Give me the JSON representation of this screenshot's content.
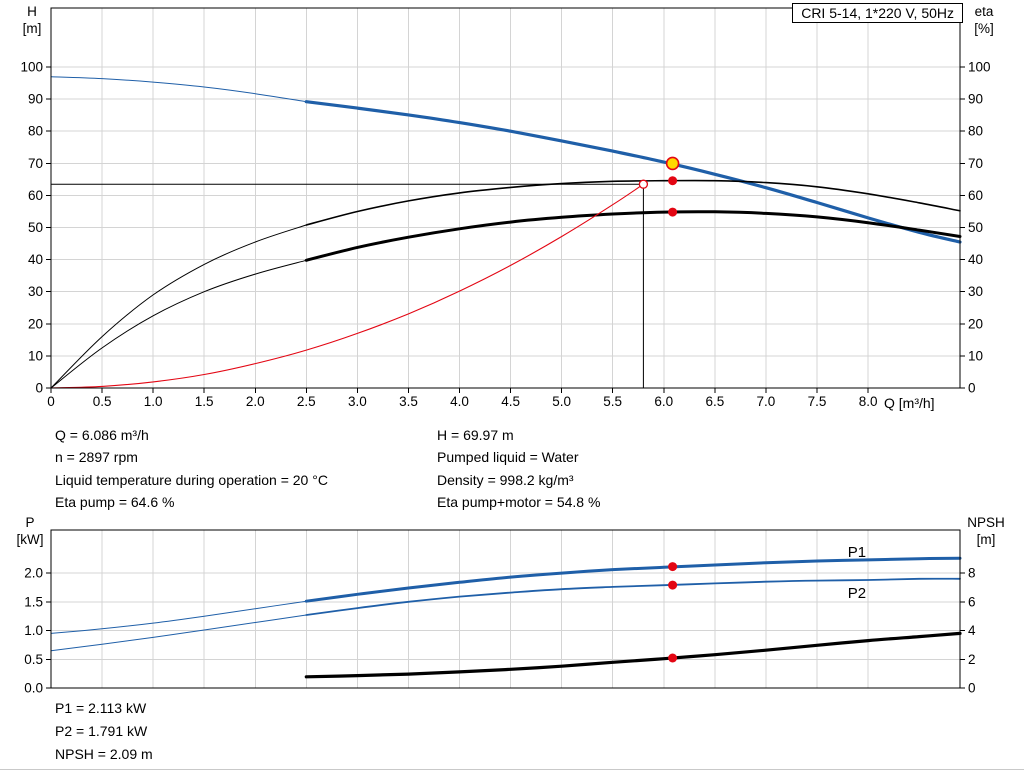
{
  "title_box": {
    "label": "CRI 5-14, 1*220 V, 50Hz"
  },
  "colors": {
    "blue": "#1f5fa8",
    "red": "#e30613",
    "black": "#000000",
    "yellow": "#ffd900",
    "grid": "#d4d4d4"
  },
  "annotations": {
    "left": [
      "Q = 6.086 m³/h",
      "n = 2897 rpm",
      "Liquid temperature during operation = 20 °C",
      "Eta pump = 64.6 %"
    ],
    "right": [
      "H = 69.97 m",
      "Pumped liquid = Water",
      "Density = 998.2 kg/m³",
      "Eta pump+motor = 54.8 %"
    ]
  },
  "bottom_annotations": [
    "P1 = 2.113 kW",
    "P2 = 1.791 kW",
    "NPSH = 2.09 m"
  ],
  "chart_data": [
    {
      "type": "line",
      "title": "CRI 5-14, 1*220 V, 50Hz",
      "x_axis": {
        "label": "Q [m³/h]",
        "min": 0,
        "max": 8.9,
        "ticks": [
          [
            0,
            "0"
          ],
          [
            0.5,
            "0.5"
          ],
          [
            1,
            "1.0"
          ],
          [
            1.5,
            "1.5"
          ],
          [
            2,
            "2.0"
          ],
          [
            2.5,
            "2.5"
          ],
          [
            3,
            "3.0"
          ],
          [
            3.5,
            "3.5"
          ],
          [
            4,
            "4.0"
          ],
          [
            4.5,
            "4.5"
          ],
          [
            5,
            "5.0"
          ],
          [
            5.5,
            "5.5"
          ],
          [
            6,
            "6.0"
          ],
          [
            6.5,
            "6.5"
          ],
          [
            7,
            "7.0"
          ],
          [
            7.5,
            "7.5"
          ],
          [
            8,
            "8.0"
          ]
        ]
      },
      "left_axis": {
        "label": "H [m]",
        "label_lines": [
          "H",
          "[m]"
        ],
        "min": 0,
        "max": 118.4,
        "ticks": [
          [
            0,
            "0"
          ],
          [
            10,
            "10"
          ],
          [
            20,
            "20"
          ],
          [
            30,
            "30"
          ],
          [
            40,
            "40"
          ],
          [
            50,
            "50"
          ],
          [
            60,
            "60"
          ],
          [
            70,
            "70"
          ],
          [
            80,
            "80"
          ],
          [
            90,
            "90"
          ],
          [
            100,
            "100"
          ]
        ]
      },
      "right_axis": {
        "label": "eta [%]",
        "label_lines": [
          "eta",
          "[%]"
        ],
        "min": 0,
        "max": 118.4,
        "ticks": [
          [
            0,
            "0"
          ],
          [
            10,
            "10"
          ],
          [
            20,
            "20"
          ],
          [
            30,
            "30"
          ],
          [
            40,
            "40"
          ],
          [
            50,
            "50"
          ],
          [
            60,
            "60"
          ],
          [
            70,
            "70"
          ],
          [
            80,
            "80"
          ],
          [
            90,
            "90"
          ],
          [
            100,
            "100"
          ]
        ]
      },
      "series": [
        {
          "name": "h-curve-lead",
          "color": "blue",
          "width": 1,
          "axis": "left",
          "points": [
            [
              0,
              97
            ],
            [
              0.5,
              96.4
            ],
            [
              1,
              95.3
            ],
            [
              1.5,
              93.8
            ],
            [
              2,
              91.7
            ],
            [
              2.5,
              89.2
            ]
          ]
        },
        {
          "name": "h-curve",
          "color": "blue",
          "width": 3.2,
          "axis": "left",
          "points": [
            [
              2.5,
              89.2
            ],
            [
              3,
              87.2
            ],
            [
              3.5,
              85.1
            ],
            [
              4,
              82.7
            ],
            [
              4.5,
              80
            ],
            [
              5,
              77
            ],
            [
              5.5,
              73.8
            ],
            [
              6,
              70.4
            ],
            [
              6.5,
              66.6
            ],
            [
              7,
              62.4
            ],
            [
              7.5,
              57.8
            ],
            [
              8,
              53
            ],
            [
              8.5,
              48.5
            ],
            [
              8.9,
              45.5
            ]
          ]
        },
        {
          "name": "eta-pump-lead",
          "color": "black",
          "width": 1,
          "axis": "right",
          "points": [
            [
              0,
              0
            ],
            [
              0.5,
              16
            ],
            [
              1,
              29
            ],
            [
              1.5,
              38.5
            ],
            [
              2,
              45.5
            ],
            [
              2.5,
              50.8
            ]
          ]
        },
        {
          "name": "eta-pump-curve",
          "color": "black",
          "width": 1.6,
          "axis": "right",
          "points": [
            [
              2.5,
              50.8
            ],
            [
              3,
              55
            ],
            [
              3.5,
              58.3
            ],
            [
              4,
              60.8
            ],
            [
              4.5,
              62.5
            ],
            [
              5,
              63.7
            ],
            [
              5.5,
              64.4
            ],
            [
              6,
              64.6
            ],
            [
              6.5,
              64.6
            ],
            [
              7,
              64
            ],
            [
              7.5,
              62.7
            ],
            [
              8,
              60.5
            ],
            [
              8.5,
              57.7
            ],
            [
              8.9,
              55.2
            ]
          ]
        },
        {
          "name": "eta-pump-motor-lead",
          "color": "black",
          "width": 1,
          "axis": "right",
          "points": [
            [
              0,
              0
            ],
            [
              0.5,
              12.5
            ],
            [
              1,
              22.5
            ],
            [
              1.5,
              30
            ],
            [
              2,
              35.5
            ],
            [
              2.5,
              39.8
            ]
          ]
        },
        {
          "name": "eta-pump-motor-curve",
          "color": "black",
          "width": 3,
          "axis": "right",
          "points": [
            [
              2.5,
              39.8
            ],
            [
              3,
              43.8
            ],
            [
              3.5,
              47
            ],
            [
              4,
              49.6
            ],
            [
              4.5,
              51.7
            ],
            [
              5,
              53.2
            ],
            [
              5.5,
              54.2
            ],
            [
              6,
              54.8
            ],
            [
              6.5,
              54.9
            ],
            [
              7,
              54.4
            ],
            [
              7.5,
              53.3
            ],
            [
              8,
              51.5
            ],
            [
              8.5,
              49.2
            ],
            [
              8.9,
              47.2
            ]
          ]
        },
        {
          "name": "requested-duty-curve",
          "color": "red",
          "width": 1.1,
          "axis": "left",
          "points": [
            [
              0,
              0
            ],
            [
              0.5,
              0.5
            ],
            [
              1,
              1.9
            ],
            [
              1.5,
              4.2
            ],
            [
              2,
              7.6
            ],
            [
              2.5,
              11.8
            ],
            [
              3,
              17
            ],
            [
              3.5,
              23.1
            ],
            [
              4,
              30.2
            ],
            [
              4.5,
              38.2
            ],
            [
              5,
              47.2
            ],
            [
              5.5,
              57.1
            ],
            [
              5.8,
              63.5
            ]
          ]
        }
      ],
      "guides": [
        {
          "name": "duty-q-guide-line",
          "type": "v",
          "at": 5.8,
          "from": 0,
          "to": 63.5,
          "axis": "left"
        },
        {
          "name": "duty-h-guide-line",
          "type": "h",
          "at": 63.5,
          "from": 0,
          "to": 5.8,
          "axis": "left"
        }
      ],
      "markers": [
        {
          "name": "requested-duty-marker",
          "x": 5.8,
          "y": 63.5,
          "axis": "left",
          "fill": "#ffffff",
          "stroke": "red",
          "r": 4,
          "sw": 1.3
        },
        {
          "name": "eta-pump-marker",
          "x": 6.086,
          "y": 64.6,
          "axis": "right",
          "fill": "red",
          "r": 4.5
        },
        {
          "name": "eta-pump-motor-marker",
          "x": 6.086,
          "y": 54.8,
          "axis": "right",
          "fill": "red",
          "r": 4.5
        },
        {
          "name": "duty-point-marker",
          "x": 6.086,
          "y": 69.97,
          "axis": "left",
          "fill": "yellow",
          "stroke": "red",
          "r": 6,
          "sw": 1.6
        }
      ],
      "labels": []
    },
    {
      "type": "line",
      "title": "Power and NPSH curves",
      "x_axis": {
        "label": "",
        "min": 0,
        "max": 8.9,
        "ticks": [
          0.5,
          1,
          1.5,
          2,
          2.5,
          3,
          3.5,
          4,
          4.5,
          5,
          5.5,
          6,
          6.5,
          7,
          7.5,
          8
        ]
      },
      "left_axis": {
        "label": "P [kW]",
        "label_lines": [
          "P",
          "[kW]"
        ],
        "min": 0,
        "max": 2.75,
        "ticks": [
          [
            0,
            "0.0"
          ],
          [
            0.5,
            "0.5"
          ],
          [
            1,
            "1.0"
          ],
          [
            1.5,
            "1.5"
          ],
          [
            2,
            "2.0"
          ]
        ]
      },
      "right_axis": {
        "label": "NPSH [m]",
        "label_lines": [
          "NPSH",
          "[m]"
        ],
        "min": 0,
        "max": 11,
        "ticks": [
          [
            0,
            "0"
          ],
          [
            2,
            "2"
          ],
          [
            4,
            "4"
          ],
          [
            6,
            "6"
          ],
          [
            8,
            "8"
          ]
        ]
      },
      "series": [
        {
          "name": "p1-curve-lead",
          "color": "blue",
          "width": 1,
          "axis": "left",
          "points": [
            [
              0,
              0.95
            ],
            [
              0.5,
              1.03
            ],
            [
              1,
              1.13
            ],
            [
              1.5,
              1.25
            ],
            [
              2,
              1.38
            ],
            [
              2.5,
              1.51
            ]
          ]
        },
        {
          "name": "p1-curve",
          "color": "blue",
          "width": 3,
          "axis": "left",
          "points": [
            [
              2.5,
              1.51
            ],
            [
              3,
              1.63
            ],
            [
              3.5,
              1.74
            ],
            [
              4,
              1.84
            ],
            [
              4.5,
              1.93
            ],
            [
              5,
              2
            ],
            [
              5.5,
              2.06
            ],
            [
              6,
              2.1
            ],
            [
              6.5,
              2.14
            ],
            [
              7,
              2.18
            ],
            [
              7.5,
              2.21
            ],
            [
              8,
              2.23
            ],
            [
              8.5,
              2.25
            ],
            [
              8.9,
              2.26
            ]
          ]
        },
        {
          "name": "p2-curve-lead",
          "color": "blue",
          "width": 1,
          "axis": "left",
          "points": [
            [
              0,
              0.65
            ],
            [
              0.5,
              0.76
            ],
            [
              1,
              0.88
            ],
            [
              1.5,
              1.01
            ],
            [
              2,
              1.14
            ],
            [
              2.5,
              1.27
            ]
          ]
        },
        {
          "name": "p2-curve",
          "color": "blue",
          "width": 1.8,
          "axis": "left",
          "points": [
            [
              2.5,
              1.27
            ],
            [
              3,
              1.39
            ],
            [
              3.5,
              1.5
            ],
            [
              4,
              1.59
            ],
            [
              4.5,
              1.66
            ],
            [
              5,
              1.72
            ],
            [
              5.5,
              1.76
            ],
            [
              6,
              1.79
            ],
            [
              6.5,
              1.82
            ],
            [
              7,
              1.85
            ],
            [
              7.5,
              1.87
            ],
            [
              8,
              1.88
            ],
            [
              8.5,
              1.9
            ],
            [
              8.9,
              1.9
            ]
          ]
        },
        {
          "name": "npsh-curve",
          "color": "black",
          "width": 3.2,
          "axis": "right",
          "points": [
            [
              2.5,
              0.78
            ],
            [
              3,
              0.86
            ],
            [
              3.5,
              0.97
            ],
            [
              4,
              1.12
            ],
            [
              4.5,
              1.3
            ],
            [
              5,
              1.52
            ],
            [
              5.5,
              1.79
            ],
            [
              6,
              2.04
            ],
            [
              6.5,
              2.32
            ],
            [
              7,
              2.63
            ],
            [
              7.5,
              2.97
            ],
            [
              8,
              3.3
            ],
            [
              8.5,
              3.58
            ],
            [
              8.9,
              3.8
            ]
          ]
        }
      ],
      "guides": [],
      "markers": [
        {
          "name": "p1-marker",
          "x": 6.086,
          "y": 2.113,
          "axis": "left",
          "fill": "red",
          "r": 4.5
        },
        {
          "name": "p2-marker",
          "x": 6.086,
          "y": 1.791,
          "axis": "left",
          "fill": "red",
          "r": 4.5
        },
        {
          "name": "npsh-marker",
          "x": 6.086,
          "y": 2.09,
          "axis": "right",
          "fill": "red",
          "r": 4.5
        }
      ],
      "labels": [
        {
          "name": "p1-label",
          "text": "P1",
          "x": 7.8,
          "y": 2.28,
          "axis": "left",
          "color": "blue"
        },
        {
          "name": "p2-label",
          "text": "P2",
          "x": 7.8,
          "y": 1.57,
          "axis": "left",
          "color": "blue"
        }
      ]
    }
  ]
}
